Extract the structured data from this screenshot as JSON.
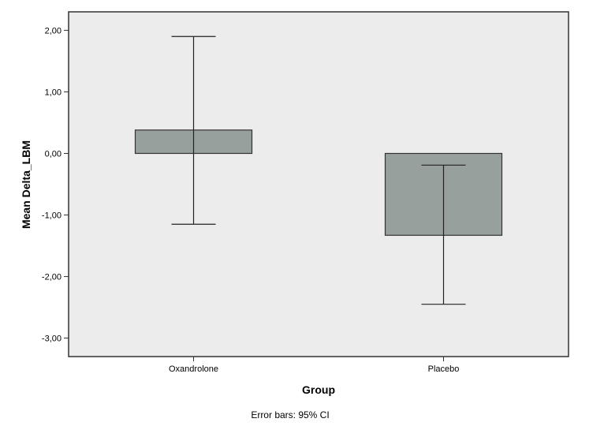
{
  "chart_data": {
    "type": "bar",
    "xlabel": "Group",
    "ylabel": "Mean Delta_LBM",
    "categories": [
      "Oxandrolone",
      "Placebo"
    ],
    "values": [
      0.38,
      -1.33
    ],
    "error_bars": {
      "type": "95% CI",
      "lower": [
        -1.15,
        -2.45
      ],
      "upper": [
        1.9,
        -0.19
      ]
    },
    "ylim": [
      -3.3,
      2.3
    ],
    "yticks": [
      2,
      1,
      0,
      -1,
      -2,
      -3
    ],
    "ytick_labels": [
      "2,00",
      "1,00",
      "0,00",
      "-1,00",
      "-2,00",
      "-3,00"
    ],
    "footnote": "Error bars: 95% CI",
    "grid": false,
    "legend": "none",
    "colors": {
      "plot_background": "#ececec",
      "bar_fill": "#97a09c",
      "bar_stroke": "#333333",
      "axis": "#333333"
    }
  }
}
